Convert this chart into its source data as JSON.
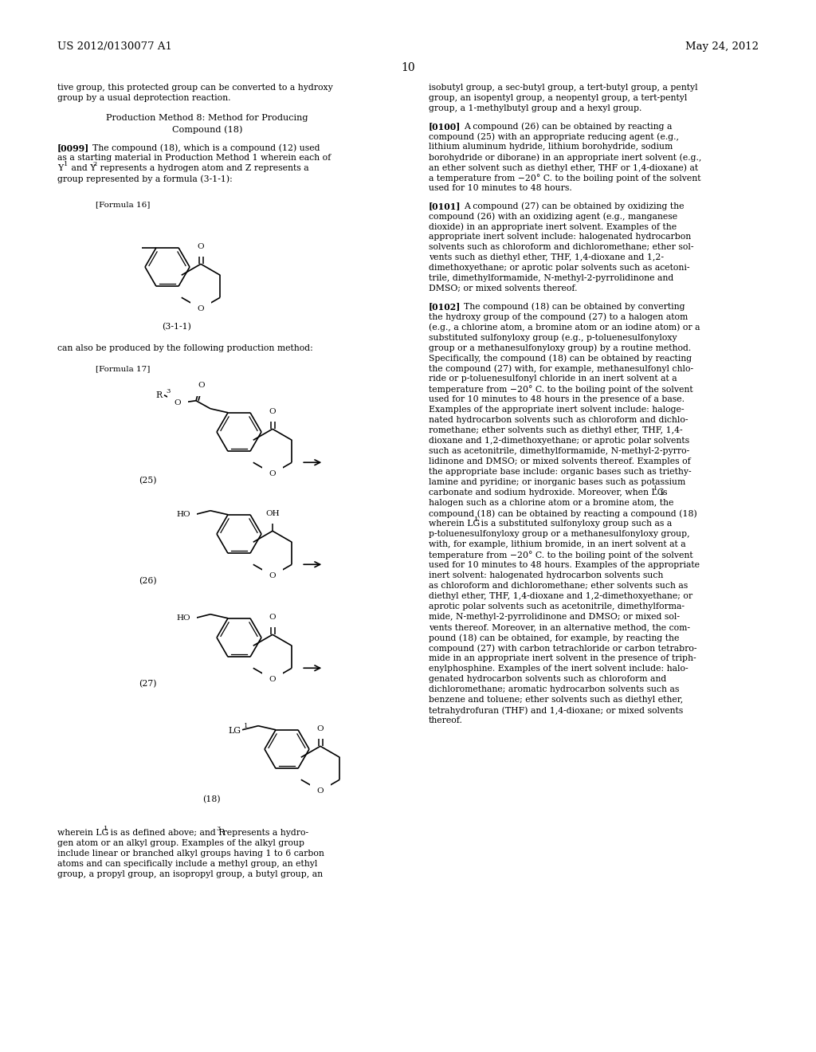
{
  "page_number": "10",
  "header_left": "US 2012/0130077 A1",
  "header_right": "May 24, 2012",
  "background_color": "#ffffff",
  "text_color": "#000000",
  "figsize": [
    10.24,
    13.2
  ],
  "dpi": 100
}
